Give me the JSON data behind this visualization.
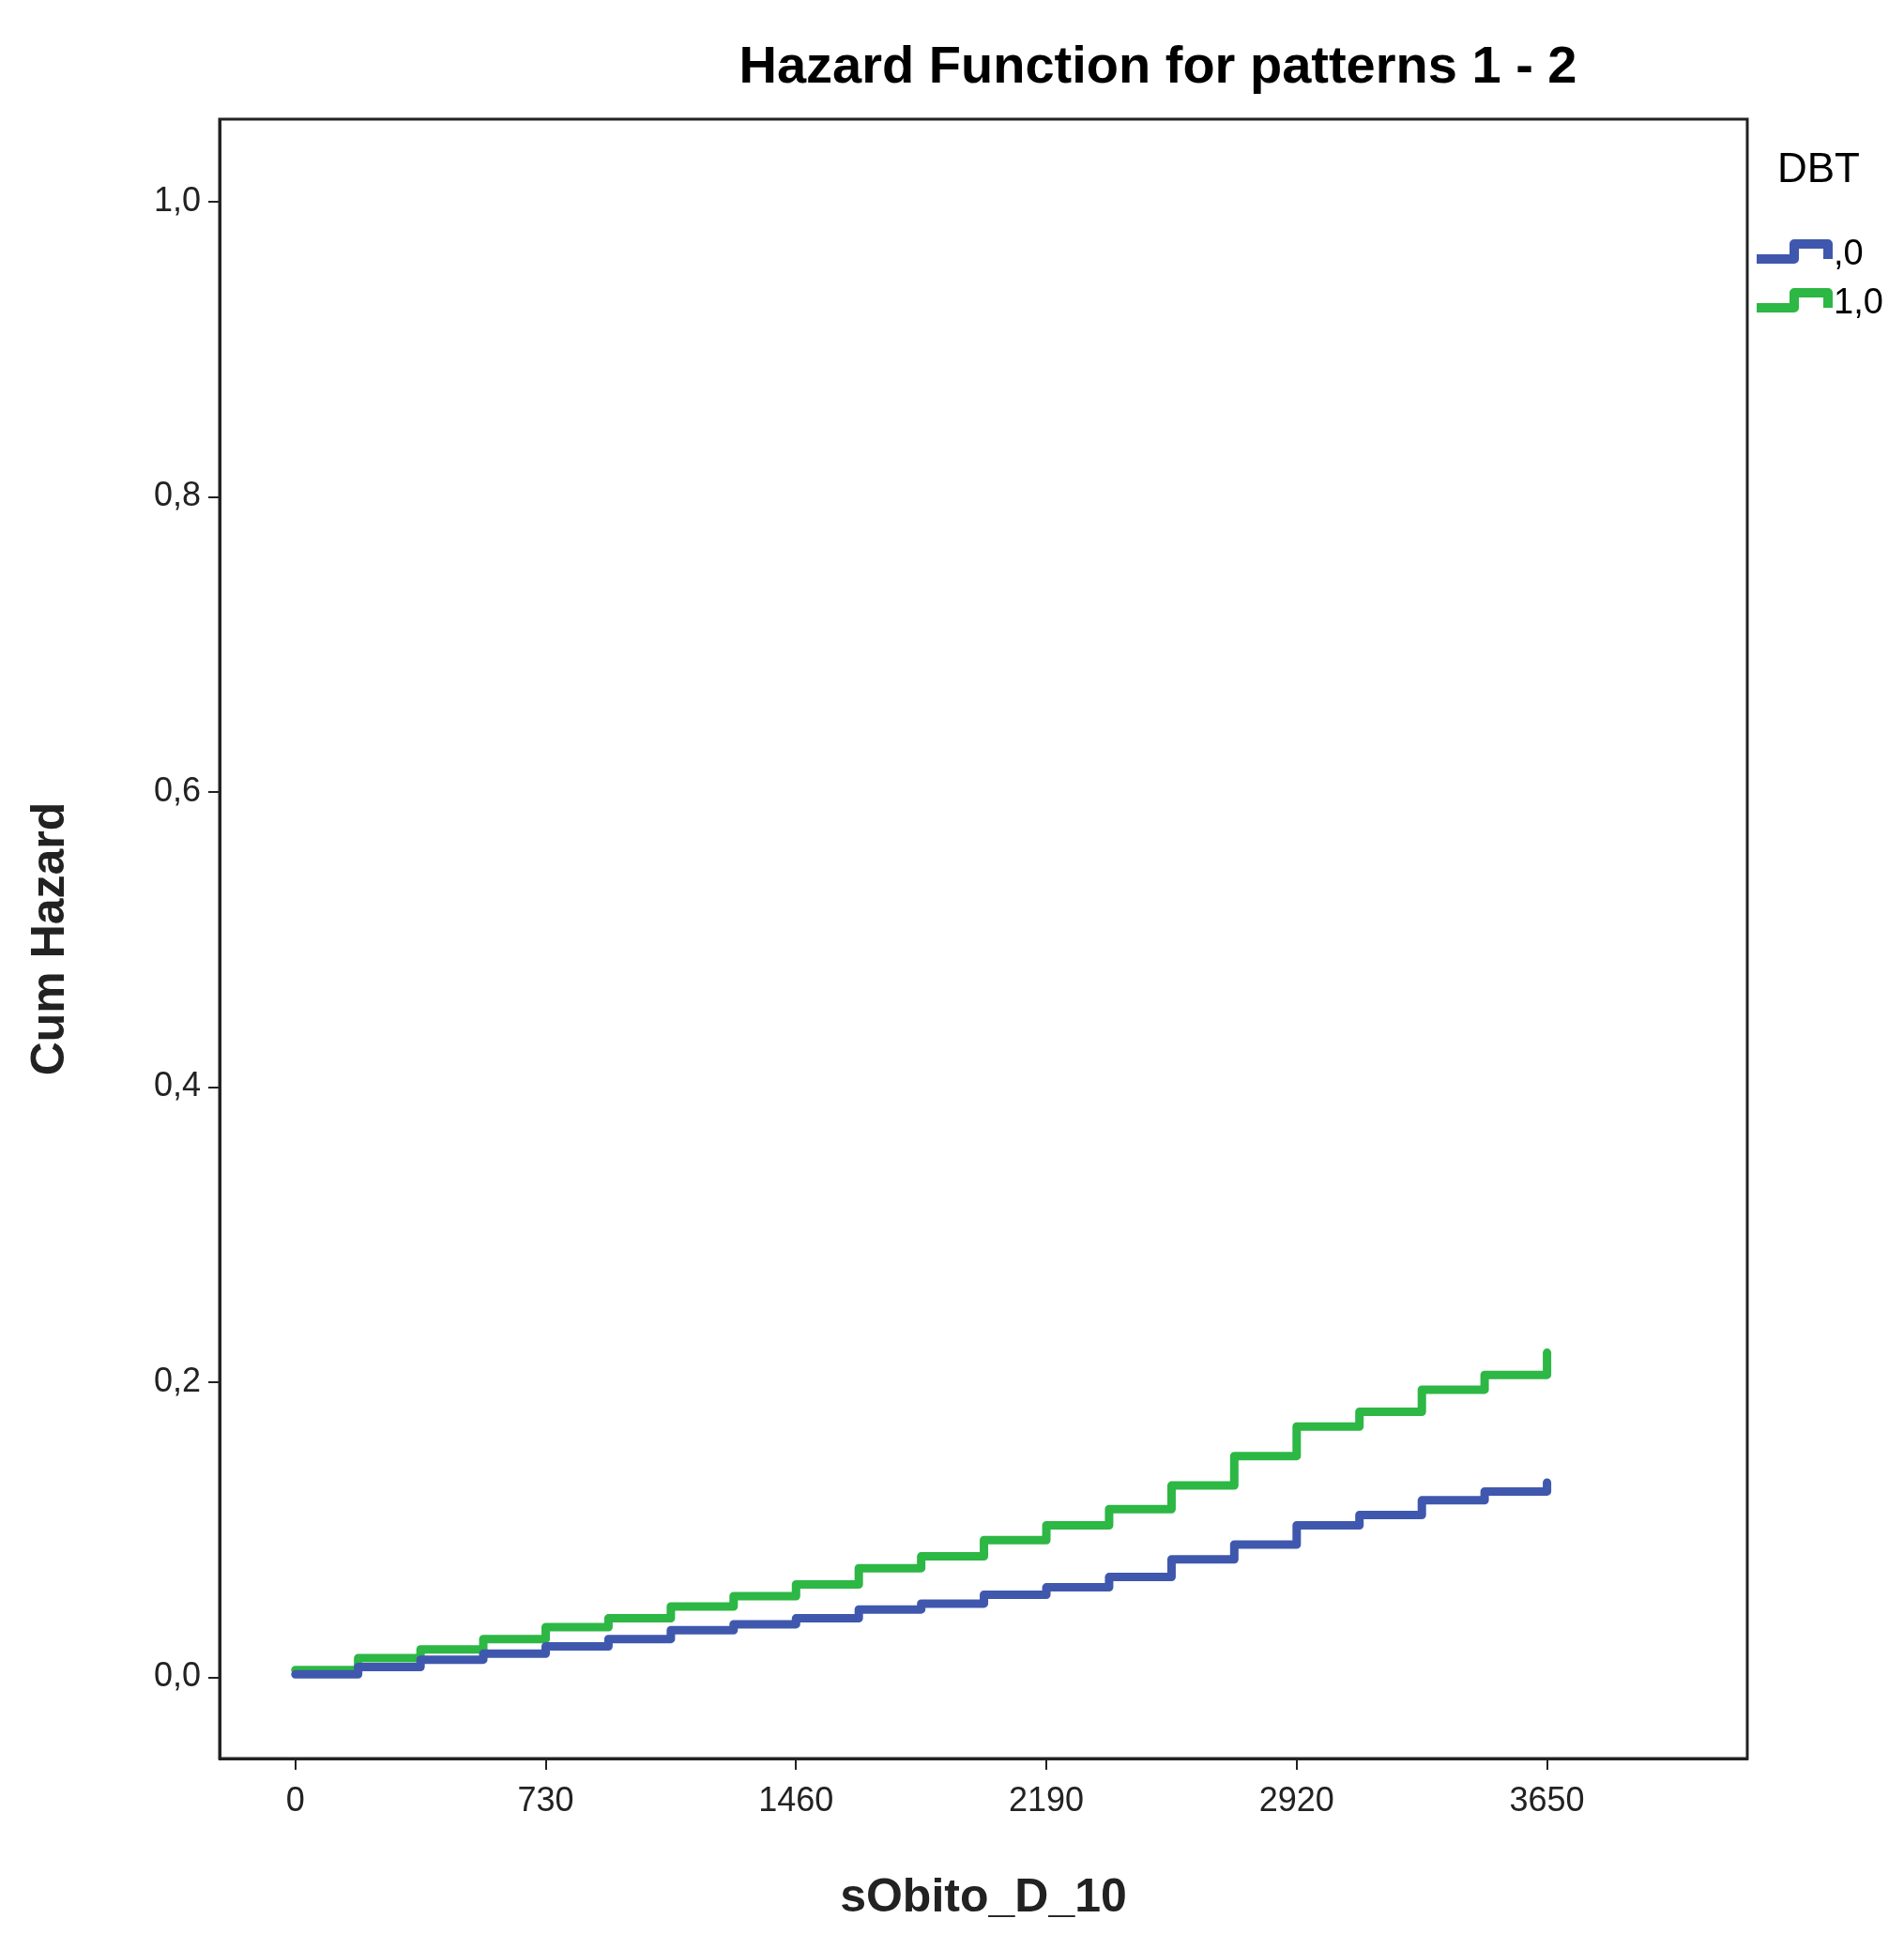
{
  "chart_data": {
    "type": "step",
    "title": "Hazard Function for patterns 1 - 2",
    "xlabel": "sObito_D_10",
    "ylabel": "Cum Hazard",
    "legend_title": "DBT",
    "x": [
      0,
      183,
      365,
      548,
      730,
      913,
      1095,
      1278,
      1460,
      1643,
      1825,
      2008,
      2190,
      2373,
      2555,
      2738,
      2920,
      3103,
      3285,
      3468,
      3650
    ],
    "series": [
      {
        "name": ",0",
        "color": "#3f58ae",
        "values": [
          0.002,
          0.007,
          0.012,
          0.016,
          0.021,
          0.026,
          0.032,
          0.036,
          0.04,
          0.046,
          0.05,
          0.056,
          0.061,
          0.068,
          0.08,
          0.09,
          0.103,
          0.11,
          0.12,
          0.126,
          0.132
        ]
      },
      {
        "name": "1,0",
        "color": "#2db744",
        "values": [
          0.005,
          0.013,
          0.019,
          0.026,
          0.034,
          0.04,
          0.048,
          0.055,
          0.063,
          0.074,
          0.082,
          0.093,
          0.103,
          0.114,
          0.13,
          0.15,
          0.17,
          0.18,
          0.195,
          0.205,
          0.22
        ]
      }
    ],
    "xlim": [
      -221,
      4234
    ],
    "xticks": [
      0,
      730,
      1460,
      2190,
      2920,
      3650
    ],
    "ylim": [
      -0.055,
      1.056
    ],
    "yticks": [
      {
        "value": 0,
        "label": "0,0"
      },
      {
        "value": 0.2,
        "label": "0,2"
      },
      {
        "value": 0.4,
        "label": "0,4"
      },
      {
        "value": 0.6,
        "label": "0,6"
      },
      {
        "value": 0.8,
        "label": "0,8"
      },
      {
        "value": 1,
        "label": "1,0"
      }
    ],
    "legend": "top right",
    "grid": false,
    "marker": "none",
    "line_style": "solid"
  }
}
